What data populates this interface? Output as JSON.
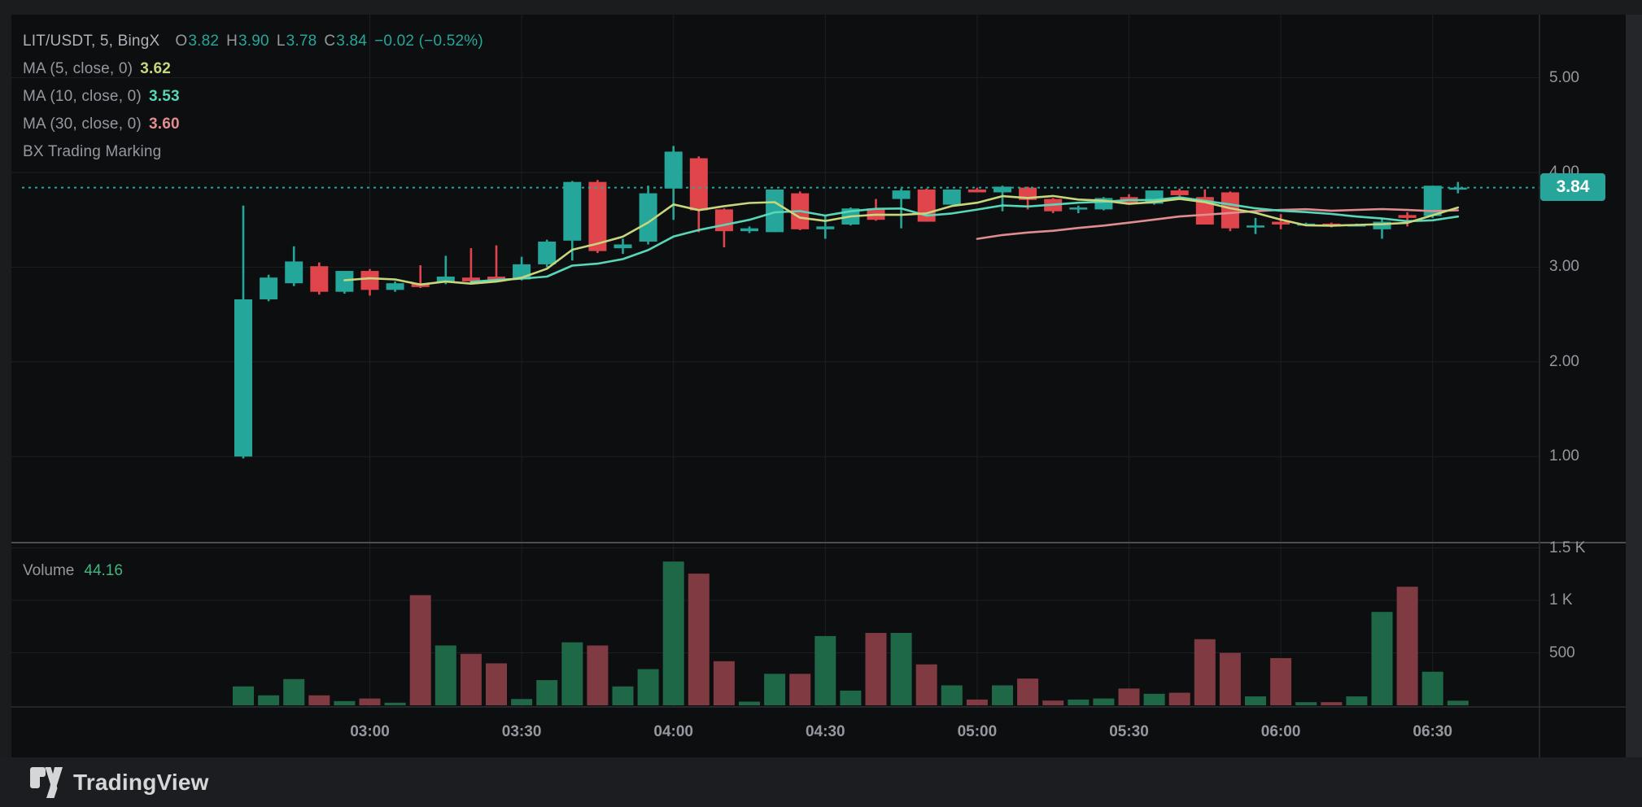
{
  "header": {
    "symbol": "LIT/USDT, 5, BingX",
    "ohlc": {
      "o_label": "O",
      "o": "3.82",
      "h_label": "H",
      "h": "3.90",
      "l_label": "L",
      "l": "3.78",
      "c_label": "C",
      "c": "3.84",
      "change": "−0.02 (−0.52%)"
    },
    "ma": [
      {
        "label": "MA (5, close, 0)",
        "value": "3.62"
      },
      {
        "label": "MA (10, close, 0)",
        "value": "3.53"
      },
      {
        "label": "MA (30, close, 0)",
        "value": "3.60"
      }
    ],
    "indicator": "BX Trading Marking"
  },
  "volume_legend": {
    "label": "Volume",
    "value": "44.16"
  },
  "axes": {
    "price_labels": [
      "5.00",
      "4.00",
      "3.00",
      "2.00",
      "1.00"
    ],
    "volume_labels": [
      "1.5 K",
      "1 K",
      "500"
    ],
    "time_labels": [
      "03:00",
      "03:30",
      "04:00",
      "04:30",
      "05:00",
      "05:30",
      "06:00",
      "06:30"
    ],
    "last_price_badge": "3.84"
  },
  "footer": {
    "brand": "TradingView"
  },
  "colors": {
    "up": "#24a79a",
    "down": "#e1454c",
    "vol_up": "#1e6848",
    "vol_down": "#7f3a42",
    "ma5": "#c5d67d",
    "ma10": "#57d7b8",
    "ma30": "#e18d90",
    "accent": "#26a69a",
    "axis_text": "#95989f"
  },
  "chart_data": {
    "type": "candlestick+volume",
    "title": "LIT/USDT, 5, BingX",
    "symbol": "LIT/USDT",
    "exchange": "BingX",
    "interval_min": 5,
    "ohlc_legend": {
      "open": 3.82,
      "high": 3.9,
      "low": 3.78,
      "close": 3.84,
      "change": -0.02,
      "change_pct": -0.52
    },
    "ma_overlays": [
      {
        "period": 5,
        "source": "close",
        "offset": 0,
        "last_value": 3.62
      },
      {
        "period": 10,
        "source": "close",
        "offset": 0,
        "last_value": 3.53
      },
      {
        "period": 30,
        "source": "close",
        "offset": 0,
        "last_value": 3.6
      }
    ],
    "indicator": "BX Trading Marking",
    "last_price": 3.84,
    "current_volume": 44.16,
    "price_axis_ticks": [
      5.0,
      4.0,
      3.0,
      2.0,
      1.0
    ],
    "volume_axis_ticks": [
      1500,
      1000,
      500
    ],
    "time_axis_ticks": [
      "03:00",
      "03:30",
      "04:00",
      "04:30",
      "05:00",
      "05:30",
      "06:00",
      "06:30"
    ],
    "grid": true,
    "times": [
      "02:35",
      "02:40",
      "02:45",
      "02:50",
      "02:55",
      "03:00",
      "03:05",
      "03:10",
      "03:15",
      "03:20",
      "03:25",
      "03:30",
      "03:35",
      "03:40",
      "03:45",
      "03:50",
      "03:55",
      "04:00",
      "04:05",
      "04:10",
      "04:15",
      "04:20",
      "04:25",
      "04:30",
      "04:35",
      "04:40",
      "04:45",
      "04:50",
      "04:55",
      "05:00",
      "05:05",
      "05:10",
      "05:15",
      "05:20",
      "05:25",
      "05:30",
      "05:35",
      "05:40",
      "05:45",
      "05:50",
      "05:55",
      "06:00",
      "06:05",
      "06:10",
      "06:15",
      "06:20",
      "06:25",
      "06:30",
      "06:35"
    ],
    "candles": [
      [
        1.0,
        3.65,
        0.98,
        2.66
      ],
      [
        2.66,
        2.92,
        2.64,
        2.89
      ],
      [
        2.83,
        3.22,
        2.8,
        3.06
      ],
      [
        3.01,
        3.05,
        2.71,
        2.74
      ],
      [
        2.74,
        2.96,
        2.72,
        2.96
      ],
      [
        2.96,
        2.98,
        2.7,
        2.76
      ],
      [
        2.76,
        2.85,
        2.74,
        2.83
      ],
      [
        2.83,
        3.02,
        2.78,
        2.79
      ],
      [
        2.84,
        3.12,
        2.82,
        2.9
      ],
      [
        2.89,
        3.2,
        2.83,
        2.85
      ],
      [
        2.9,
        3.23,
        2.85,
        2.87
      ],
      [
        2.87,
        3.11,
        2.86,
        3.03
      ],
      [
        3.03,
        3.29,
        3.0,
        3.27
      ],
      [
        3.28,
        3.91,
        3.07,
        3.9
      ],
      [
        3.9,
        3.92,
        3.15,
        3.17
      ],
      [
        3.2,
        3.3,
        3.14,
        3.24
      ],
      [
        3.27,
        3.86,
        3.24,
        3.78
      ],
      [
        3.83,
        4.28,
        3.5,
        4.22
      ],
      [
        4.15,
        4.17,
        3.37,
        3.6
      ],
      [
        3.61,
        3.62,
        3.21,
        3.38
      ],
      [
        3.38,
        3.43,
        3.36,
        3.41
      ],
      [
        3.37,
        3.82,
        3.37,
        3.82
      ],
      [
        3.78,
        3.8,
        3.39,
        3.4
      ],
      [
        3.4,
        3.55,
        3.3,
        3.43
      ],
      [
        3.45,
        3.63,
        3.44,
        3.62
      ],
      [
        3.62,
        3.72,
        3.49,
        3.5
      ],
      [
        3.72,
        3.83,
        3.41,
        3.81
      ],
      [
        3.82,
        3.83,
        3.48,
        3.48
      ],
      [
        3.66,
        3.82,
        3.66,
        3.82
      ],
      [
        3.82,
        3.84,
        3.79,
        3.79
      ],
      [
        3.79,
        3.86,
        3.59,
        3.85
      ],
      [
        3.84,
        3.85,
        3.61,
        3.71
      ],
      [
        3.72,
        3.73,
        3.57,
        3.59
      ],
      [
        3.61,
        3.65,
        3.57,
        3.63
      ],
      [
        3.61,
        3.74,
        3.6,
        3.73
      ],
      [
        3.74,
        3.77,
        3.67,
        3.68
      ],
      [
        3.67,
        3.81,
        3.66,
        3.81
      ],
      [
        3.81,
        3.83,
        3.75,
        3.76
      ],
      [
        3.74,
        3.82,
        3.45,
        3.45
      ],
      [
        3.79,
        3.8,
        3.38,
        3.41
      ],
      [
        3.42,
        3.52,
        3.35,
        3.44
      ],
      [
        3.48,
        3.56,
        3.4,
        3.45
      ],
      [
        3.45,
        3.47,
        3.44,
        3.46
      ],
      [
        3.46,
        3.47,
        3.42,
        3.43
      ],
      [
        3.44,
        3.46,
        3.43,
        3.45
      ],
      [
        3.4,
        3.52,
        3.3,
        3.48
      ],
      [
        3.55,
        3.58,
        3.43,
        3.52
      ],
      [
        3.54,
        3.86,
        3.52,
        3.86
      ],
      [
        3.82,
        3.9,
        3.78,
        3.84
      ]
    ],
    "volumes": [
      180,
      95,
      250,
      95,
      40,
      65,
      25,
      1050,
      570,
      490,
      400,
      60,
      240,
      600,
      570,
      180,
      345,
      1370,
      1255,
      420,
      35,
      300,
      300,
      660,
      140,
      690,
      690,
      390,
      190,
      55,
      190,
      255,
      45,
      55,
      65,
      160,
      110,
      120,
      630,
      500,
      85,
      450,
      30,
      30,
      85,
      890,
      1130,
      320,
      44.16
    ]
  }
}
